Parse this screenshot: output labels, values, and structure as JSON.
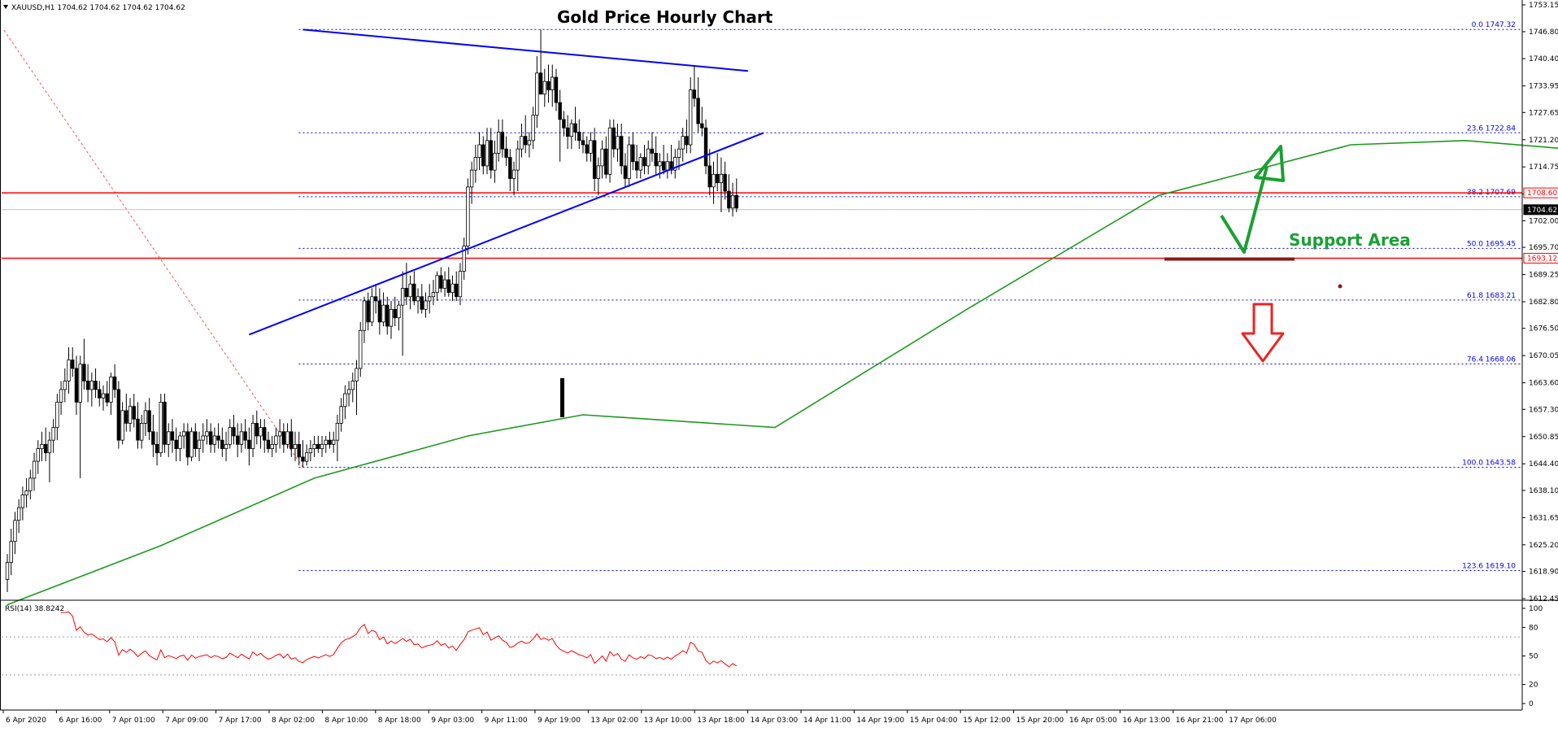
{
  "chart_data": {
    "type": "candlestick",
    "title": "Gold Price Hourly Chart",
    "symbol_info": "XAUUSD,H1  1704.62 1704.62 1704.62 1704.62",
    "y_ticks": [
      "1753.15",
      "1746.80",
      "1740.40",
      "1733.95",
      "1727.65",
      "1721.20",
      "1714.75",
      "1708.35",
      "1702.00",
      "1695.70",
      "1689.25",
      "1682.80",
      "1676.50",
      "1670.05",
      "1663.60",
      "1657.30",
      "1650.85",
      "1644.40",
      "1638.10",
      "1631.65",
      "1625.20",
      "1618.90",
      "1612.45"
    ],
    "ylim": [
      1612.45,
      1753.15
    ],
    "x_ticks": [
      "6 Apr 2020",
      "6 Apr 16:00",
      "7 Apr 01:00",
      "7 Apr 09:00",
      "7 Apr 17:00",
      "8 Apr 02:00",
      "8 Apr 10:00",
      "8 Apr 18:00",
      "9 Apr 03:00",
      "9 Apr 11:00",
      "9 Apr 19:00",
      "13 Apr 02:00",
      "13 Apr 10:00",
      "13 Apr 18:00",
      "14 Apr 03:00",
      "14 Apr 11:00",
      "14 Apr 19:00",
      "15 Apr 04:00",
      "15 Apr 12:00",
      "15 Apr 20:00",
      "16 Apr 05:00",
      "16 Apr 13:00",
      "16 Apr 21:00",
      "17 Apr 06:00"
    ],
    "price_labels": [
      {
        "value": 1708.6,
        "text": "1708.60",
        "color": "#ff0000"
      },
      {
        "value": 1704.62,
        "text": "1704.62",
        "color": "#000000"
      },
      {
        "value": 1693.12,
        "text": "1693.12",
        "color": "#ff0000"
      }
    ],
    "horizontal_lines": [
      {
        "value": 1708.6,
        "color": "#ff0000"
      },
      {
        "value": 1693.12,
        "color": "#ff0000"
      },
      {
        "value": 1704.62,
        "color": "#c0c0c0"
      }
    ],
    "fibonacci": [
      {
        "level": "0.0",
        "price": 1747.32,
        "label": "0.0 1747.32"
      },
      {
        "level": "23.6",
        "price": 1722.84,
        "label": "23.6 1722.84"
      },
      {
        "level": "38.2",
        "price": 1707.69,
        "label": "38.2 1707.69"
      },
      {
        "level": "50.0",
        "price": 1695.45,
        "label": "50.0 1695.45"
      },
      {
        "level": "61.8",
        "price": 1683.21,
        "label": "61.8 1683.21"
      },
      {
        "level": "76.4",
        "price": 1668.06,
        "label": "76.4 1668.06"
      },
      {
        "level": "100.0",
        "price": 1643.58,
        "label": "100.0 1643.58"
      },
      {
        "level": "123.6",
        "price": 1619.1,
        "label": "123.6 1619.10"
      }
    ],
    "fib_start_index": 77,
    "candles": [
      [
        1617,
        1623,
        1614,
        1621
      ],
      [
        1621,
        1629,
        1618,
        1626
      ],
      [
        1626,
        1633,
        1623,
        1631
      ],
      [
        1631,
        1636,
        1628,
        1634
      ],
      [
        1634,
        1639,
        1631,
        1637
      ],
      [
        1637,
        1641,
        1634,
        1638
      ],
      [
        1638,
        1643,
        1636,
        1641
      ],
      [
        1641,
        1647,
        1638,
        1645
      ],
      [
        1645,
        1650,
        1642,
        1648
      ],
      [
        1648,
        1652,
        1645,
        1649
      ],
      [
        1649,
        1653,
        1645,
        1647
      ],
      [
        1647,
        1652,
        1640,
        1650
      ],
      [
        1650,
        1655,
        1647,
        1653
      ],
      [
        1653,
        1661,
        1650,
        1659
      ],
      [
        1659,
        1664,
        1656,
        1662
      ],
      [
        1662,
        1667,
        1659,
        1664
      ],
      [
        1664,
        1672,
        1661,
        1669
      ],
      [
        1669,
        1672,
        1665,
        1667
      ],
      [
        1667,
        1670,
        1656,
        1659
      ],
      [
        1659,
        1670,
        1641,
        1668
      ],
      [
        1668,
        1674,
        1662,
        1664
      ],
      [
        1664,
        1668,
        1659,
        1662
      ],
      [
        1662,
        1666,
        1658,
        1664
      ],
      [
        1664,
        1667,
        1660,
        1662
      ],
      [
        1662,
        1664,
        1658,
        1660
      ],
      [
        1660,
        1663,
        1657,
        1661
      ],
      [
        1661,
        1664,
        1658,
        1659
      ],
      [
        1659,
        1666,
        1656,
        1665
      ],
      [
        1665,
        1668,
        1660,
        1662
      ],
      [
        1662,
        1664,
        1648,
        1650
      ],
      [
        1650,
        1659,
        1649,
        1657
      ],
      [
        1657,
        1661,
        1652,
        1654
      ],
      [
        1654,
        1660,
        1652,
        1658
      ],
      [
        1658,
        1661,
        1653,
        1655
      ],
      [
        1655,
        1659,
        1648,
        1650
      ],
      [
        1650,
        1656,
        1648,
        1654
      ],
      [
        1654,
        1659,
        1651,
        1657
      ],
      [
        1657,
        1660,
        1650,
        1652
      ],
      [
        1652,
        1656,
        1646,
        1649
      ],
      [
        1649,
        1652,
        1644,
        1647
      ],
      [
        1647,
        1661,
        1646,
        1659
      ],
      [
        1659,
        1661,
        1647,
        1649
      ],
      [
        1649,
        1654,
        1646,
        1652
      ],
      [
        1652,
        1655,
        1647,
        1650
      ],
      [
        1650,
        1653,
        1645,
        1648
      ],
      [
        1648,
        1652,
        1645,
        1651
      ],
      [
        1651,
        1654,
        1648,
        1652
      ],
      [
        1652,
        1654,
        1644,
        1646
      ],
      [
        1646,
        1653,
        1645,
        1652
      ],
      [
        1652,
        1654,
        1646,
        1648
      ],
      [
        1648,
        1652,
        1645,
        1650
      ],
      [
        1650,
        1654,
        1647,
        1651
      ],
      [
        1651,
        1655,
        1649,
        1652
      ],
      [
        1652,
        1654,
        1647,
        1649
      ],
      [
        1649,
        1653,
        1647,
        1651
      ],
      [
        1651,
        1654,
        1648,
        1650
      ],
      [
        1650,
        1653,
        1646,
        1648
      ],
      [
        1648,
        1652,
        1645,
        1649
      ],
      [
        1649,
        1655,
        1648,
        1653
      ],
      [
        1653,
        1656,
        1649,
        1651
      ],
      [
        1651,
        1654,
        1646,
        1649
      ],
      [
        1649,
        1654,
        1647,
        1652
      ],
      [
        1652,
        1655,
        1648,
        1650
      ],
      [
        1650,
        1653,
        1644,
        1648
      ],
      [
        1648,
        1656,
        1646,
        1654
      ],
      [
        1654,
        1657,
        1649,
        1651
      ],
      [
        1651,
        1655,
        1648,
        1653
      ],
      [
        1653,
        1655,
        1647,
        1650
      ],
      [
        1650,
        1652,
        1647,
        1648
      ],
      [
        1648,
        1651,
        1646,
        1649
      ],
      [
        1649,
        1653,
        1647,
        1651
      ],
      [
        1651,
        1655,
        1648,
        1652
      ],
      [
        1652,
        1654,
        1647,
        1649
      ],
      [
        1649,
        1654,
        1648,
        1652
      ],
      [
        1652,
        1655,
        1646,
        1648
      ],
      [
        1648,
        1652,
        1645,
        1649
      ],
      [
        1649,
        1652,
        1644,
        1646
      ],
      [
        1646,
        1650,
        1643.6,
        1645
      ],
      [
        1645,
        1649,
        1644,
        1647
      ],
      [
        1647,
        1650,
        1645,
        1648
      ],
      [
        1648,
        1651,
        1646,
        1649
      ],
      [
        1649,
        1651,
        1647,
        1648
      ],
      [
        1648,
        1651,
        1646,
        1649
      ],
      [
        1649,
        1651,
        1647,
        1650
      ],
      [
        1650,
        1652,
        1648,
        1649
      ],
      [
        1649,
        1652,
        1647,
        1650
      ],
      [
        1650,
        1656,
        1645,
        1654
      ],
      [
        1654,
        1660,
        1652,
        1658
      ],
      [
        1658,
        1663,
        1655,
        1661
      ],
      [
        1661,
        1664,
        1658,
        1662
      ],
      [
        1662,
        1666,
        1659,
        1664
      ],
      [
        1664,
        1669,
        1656,
        1667
      ],
      [
        1667,
        1678,
        1665,
        1676
      ],
      [
        1676,
        1684,
        1673,
        1683
      ],
      [
        1683,
        1685,
        1676,
        1678
      ],
      [
        1678,
        1686,
        1677,
        1684
      ],
      [
        1684,
        1687,
        1680,
        1683
      ],
      [
        1683,
        1686,
        1675,
        1678
      ],
      [
        1678,
        1685,
        1677,
        1682
      ],
      [
        1682,
        1684,
        1675,
        1677
      ],
      [
        1677,
        1683,
        1674,
        1681
      ],
      [
        1681,
        1684,
        1677,
        1679
      ],
      [
        1679,
        1683,
        1676,
        1682
      ],
      [
        1682,
        1690,
        1670,
        1686
      ],
      [
        1686,
        1692,
        1682,
        1684
      ],
      [
        1684,
        1689,
        1681,
        1687
      ],
      [
        1687,
        1690,
        1682,
        1683
      ],
      [
        1683,
        1686,
        1680,
        1684
      ],
      [
        1684,
        1687,
        1680,
        1681
      ],
      [
        1681,
        1685,
        1679,
        1683
      ],
      [
        1683,
        1687,
        1680,
        1684
      ],
      [
        1684,
        1688,
        1682,
        1685
      ],
      [
        1685,
        1690,
        1683,
        1689
      ],
      [
        1689,
        1691,
        1685,
        1686
      ],
      [
        1686,
        1690,
        1684,
        1688
      ],
      [
        1688,
        1691,
        1684,
        1685
      ],
      [
        1685,
        1689,
        1683,
        1687
      ],
      [
        1687,
        1690,
        1683,
        1684
      ],
      [
        1684,
        1692,
        1682,
        1690
      ],
      [
        1690,
        1698,
        1688,
        1696
      ],
      [
        1696,
        1712,
        1694,
        1710
      ],
      [
        1710,
        1716,
        1706,
        1714
      ],
      [
        1714,
        1720,
        1711,
        1717
      ],
      [
        1717,
        1723,
        1714,
        1720
      ],
      [
        1720,
        1722,
        1713,
        1715
      ],
      [
        1715,
        1724,
        1713,
        1721
      ],
      [
        1721,
        1724,
        1712,
        1714
      ],
      [
        1714,
        1721,
        1711,
        1718
      ],
      [
        1718,
        1726,
        1716,
        1723
      ],
      [
        1723,
        1726,
        1717,
        1719
      ],
      [
        1719,
        1722,
        1715,
        1717
      ],
      [
        1717,
        1719,
        1709,
        1712
      ],
      [
        1712,
        1716,
        1708,
        1714
      ],
      [
        1714,
        1721,
        1709,
        1719
      ],
      [
        1719,
        1725,
        1717,
        1722
      ],
      [
        1722,
        1727,
        1718,
        1720
      ],
      [
        1720,
        1723,
        1717,
        1721
      ],
      [
        1721,
        1729,
        1719,
        1727
      ],
      [
        1727,
        1741,
        1724,
        1737
      ],
      [
        1737,
        1747.3,
        1732,
        1732
      ],
      [
        1732,
        1738,
        1729,
        1735
      ],
      [
        1735,
        1739,
        1730,
        1733
      ],
      [
        1733,
        1739,
        1729,
        1736
      ],
      [
        1736,
        1738,
        1728,
        1730
      ],
      [
        1730,
        1733,
        1716,
        1726
      ],
      [
        1726,
        1728,
        1722,
        1724
      ],
      [
        1724,
        1727,
        1719,
        1722
      ],
      [
        1722,
        1726,
        1719,
        1725
      ],
      [
        1725,
        1729,
        1721,
        1723
      ],
      [
        1723,
        1726,
        1719,
        1721
      ],
      [
        1721,
        1723,
        1718,
        1720
      ],
      [
        1720,
        1722,
        1716,
        1718
      ],
      [
        1718,
        1723,
        1716,
        1721
      ],
      [
        1721,
        1724,
        1709,
        1712
      ],
      [
        1712,
        1717,
        1708,
        1715
      ],
      [
        1715,
        1721,
        1712,
        1719
      ],
      [
        1719,
        1722,
        1712,
        1713
      ],
      [
        1713,
        1726,
        1711,
        1724
      ],
      [
        1724,
        1726,
        1717,
        1719
      ],
      [
        1719,
        1725,
        1716,
        1722
      ],
      [
        1722,
        1725,
        1713,
        1715
      ],
      [
        1715,
        1718,
        1710,
        1712
      ],
      [
        1712,
        1722,
        1710,
        1720
      ],
      [
        1720,
        1723,
        1714,
        1716
      ],
      [
        1716,
        1720,
        1712,
        1714
      ],
      [
        1714,
        1718,
        1712,
        1717
      ],
      [
        1717,
        1720,
        1713,
        1715
      ],
      [
        1715,
        1721,
        1713,
        1719
      ],
      [
        1719,
        1723,
        1716,
        1718
      ],
      [
        1718,
        1722,
        1713,
        1715
      ],
      [
        1715,
        1718,
        1712,
        1716
      ],
      [
        1716,
        1720,
        1713,
        1714
      ],
      [
        1714,
        1718,
        1712,
        1716
      ],
      [
        1716,
        1720,
        1713,
        1714
      ],
      [
        1714,
        1719,
        1712,
        1717
      ],
      [
        1717,
        1721,
        1714,
        1719
      ],
      [
        1719,
        1724,
        1716,
        1722
      ],
      [
        1722,
        1726,
        1718,
        1720
      ],
      [
        1720,
        1736,
        1718,
        1733
      ],
      [
        1733,
        1738.5,
        1729,
        1731
      ],
      [
        1731,
        1736,
        1723,
        1725
      ],
      [
        1725,
        1729,
        1722,
        1724
      ],
      [
        1724,
        1726,
        1713,
        1715
      ],
      [
        1715,
        1719,
        1708,
        1710
      ],
      [
        1710,
        1716,
        1706,
        1713
      ],
      [
        1713,
        1718,
        1709,
        1711
      ],
      [
        1711,
        1717,
        1704,
        1713
      ],
      [
        1713,
        1716,
        1707,
        1709
      ],
      [
        1709,
        1713,
        1704,
        1705
      ],
      [
        1705,
        1711,
        1703,
        1708
      ],
      [
        1708,
        1712,
        1704,
        1705
      ]
    ],
    "ma50": [
      [
        0,
        1611
      ],
      [
        40,
        1625
      ],
      [
        80,
        1641
      ],
      [
        120,
        1651
      ],
      [
        150,
        1656
      ],
      [
        200,
        1653
      ],
      [
        250,
        1681
      ],
      [
        300,
        1708
      ],
      [
        350,
        1720
      ],
      [
        380,
        1721
      ],
      [
        420,
        1718
      ]
    ],
    "trendlines": [
      {
        "from": [
          63,
          1675.0
        ],
        "to": [
          197,
          1722.8
        ],
        "color": "#0000ff"
      },
      {
        "from": [
          77,
          1747.3
        ],
        "to": [
          193,
          1737.5
        ],
        "color": "#0000ff"
      }
    ],
    "annotations": {
      "support_text": "Support Area",
      "support_line_price": 1693.12,
      "support_line_from": 195,
      "support_line_to": 232
    },
    "rsi": {
      "label": "RSI(14) 38.8242",
      "period": 14,
      "ticks": [
        "100",
        "80",
        "50",
        "20",
        "0"
      ],
      "levels": [
        70,
        30
      ],
      "ylim": [
        0,
        100
      ],
      "last_value": 38.8242
    }
  },
  "colors": {
    "bull_body": "#ffffff",
    "bear_body": "#000000",
    "ma": "#1e9a1e",
    "trendline": "#0000ff",
    "fib": "#0000ff",
    "fib_ray": "#ff5050",
    "support_line": "#8b1a1a",
    "arrow_up": "#1aa032",
    "arrow_down": "#ee2222",
    "rsi_line": "#ff0000"
  }
}
